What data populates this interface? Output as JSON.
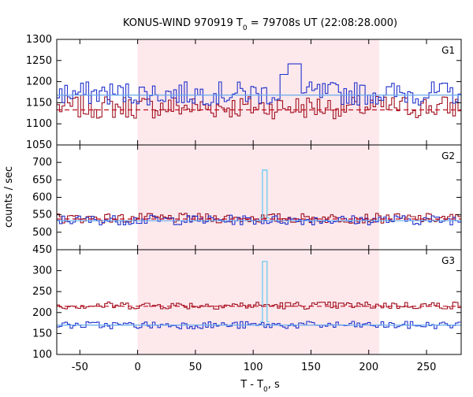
{
  "chart_data": {
    "type": "line",
    "title": "KONUS-WIND 970919 T",
    "title_sub": "0",
    "title_rest": " = 79708s UT (22:08:28.000)",
    "xlabel_main": "T - T",
    "xlabel_sub": "0",
    "xlabel_rest": ", s",
    "ylabel": "counts / sec",
    "xlim": [
      -70,
      280
    ],
    "x_ticks": [
      -50,
      0,
      50,
      100,
      150,
      200,
      250
    ],
    "x_tick_labels": [
      "-50",
      "0",
      "50",
      "100",
      "150",
      "200",
      "250"
    ],
    "interval_highlight": [
      0,
      209
    ],
    "colors": {
      "highlight": "#fde8ec",
      "red_series": "#a01020",
      "blue_series": "#2233cc",
      "light_series": "#66ccee",
      "red_background": "#c01020",
      "blue_background": "#66aaee"
    },
    "panels": [
      {
        "name": "G1",
        "ylim": [
          1050,
          1300
        ],
        "y_ticks": [
          1050,
          1100,
          1150,
          1200,
          1250,
          1300
        ],
        "y_tick_labels": [
          "1050",
          "1100",
          "1150",
          "1200",
          "1250",
          "1300"
        ],
        "red_background": 1133,
        "blue_background": 1168,
        "red_base": 1140,
        "blue_base": 1172,
        "amplitude": 28,
        "spike": null
      },
      {
        "name": "G2",
        "ylim": [
          450,
          750
        ],
        "y_ticks": [
          450,
          500,
          550,
          600,
          650,
          700
        ],
        "y_tick_labels": [
          "450",
          "500",
          "550",
          "600",
          "650",
          "700"
        ],
        "red_background": 538,
        "blue_background": 533,
        "red_base": 540,
        "blue_base": 535,
        "amplitude": 14,
        "spike": {
          "x_start": 108,
          "x_end": 112,
          "value": 678
        }
      },
      {
        "name": "G3",
        "ylim": [
          100,
          350
        ],
        "y_ticks": [
          100,
          150,
          200,
          250,
          300
        ],
        "y_tick_labels": [
          "100",
          "150",
          "200",
          "250",
          "300"
        ],
        "red_background": 215,
        "blue_background": 170,
        "red_base": 217,
        "blue_base": 170,
        "amplitude": 9,
        "spike": {
          "x_start": 108,
          "x_end": 112,
          "value": 322
        }
      }
    ]
  }
}
